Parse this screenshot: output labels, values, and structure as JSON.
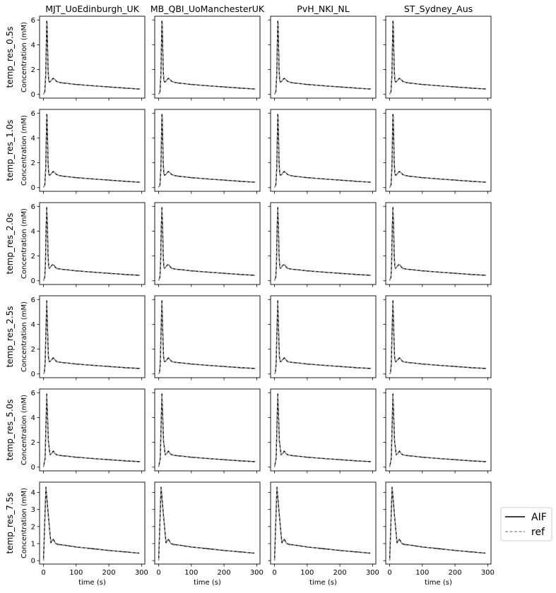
{
  "chart_data": {
    "type": "line",
    "layout": "small-multiples grid (6 rows x 4 columns)",
    "columns": [
      "MJT_UoEdinburgh_UK",
      "MB_QBI_UoManchesterUK",
      "PvH_NKI_NL",
      "ST_Sydney_Aus"
    ],
    "rows": [
      "temp_res_0.5s",
      "temp_res_1.0s",
      "temp_res_2.0s",
      "temp_res_2.5s",
      "temp_res_5.0s",
      "temp_res_7.5s"
    ],
    "xlabel": "time (s)",
    "ylabel": "Concentration (mM)",
    "xlim": [
      -12,
      310
    ],
    "x_ticks": [
      0,
      100,
      200,
      300
    ],
    "row_ylim": [
      [
        -0.3,
        6.3
      ],
      [
        -0.3,
        6.3
      ],
      [
        -0.3,
        6.3
      ],
      [
        -0.3,
        6.3
      ],
      [
        -0.3,
        6.3
      ],
      [
        -0.2,
        4.6
      ]
    ],
    "row_yticks": [
      [
        0,
        2,
        4,
        6
      ],
      [
        0,
        2,
        4,
        6
      ],
      [
        0,
        2,
        4,
        6
      ],
      [
        0,
        2,
        4,
        6
      ],
      [
        0,
        2,
        4,
        6
      ],
      [
        0,
        1,
        2,
        3,
        4
      ]
    ],
    "legend_placement": "right of bottom row",
    "series": [
      {
        "name": "AIF",
        "color": "#000000",
        "style": "solid"
      },
      {
        "name": "ref",
        "color": "#999999",
        "style": "dashed"
      }
    ],
    "row_curves": [
      {
        "x": [
          0,
          4,
          7,
          9,
          10,
          11,
          12,
          14,
          16,
          18,
          22,
          26,
          30,
          34,
          40,
          50,
          60,
          80,
          100,
          150,
          200,
          250,
          295
        ],
        "y": [
          0.02,
          0.2,
          1.6,
          4.6,
          5.9,
          5.7,
          4.4,
          2.0,
          1.1,
          1.0,
          1.05,
          1.2,
          1.3,
          1.22,
          1.05,
          0.96,
          0.92,
          0.86,
          0.8,
          0.7,
          0.6,
          0.51,
          0.43
        ]
      },
      {
        "x": [
          0,
          4,
          7,
          9,
          10,
          11,
          12,
          14,
          16,
          18,
          22,
          26,
          30,
          34,
          40,
          50,
          60,
          80,
          100,
          150,
          200,
          250,
          295
        ],
        "y": [
          0.02,
          0.2,
          1.6,
          4.6,
          5.9,
          5.7,
          4.4,
          2.0,
          1.1,
          1.0,
          1.05,
          1.2,
          1.3,
          1.22,
          1.05,
          0.96,
          0.92,
          0.86,
          0.8,
          0.7,
          0.6,
          0.51,
          0.43
        ]
      },
      {
        "x": [
          0,
          4,
          6,
          8,
          10,
          12,
          14,
          16,
          18,
          20,
          24,
          28,
          32,
          36,
          40,
          50,
          60,
          80,
          100,
          150,
          200,
          250,
          294
        ],
        "y": [
          0.02,
          0.3,
          1.4,
          4.2,
          5.9,
          4.4,
          2.0,
          1.1,
          1.0,
          1.05,
          1.2,
          1.3,
          1.25,
          1.1,
          1.0,
          0.95,
          0.91,
          0.86,
          0.8,
          0.7,
          0.6,
          0.51,
          0.44
        ]
      },
      {
        "x": [
          0,
          2.5,
          5,
          7.5,
          10,
          12.5,
          15,
          17.5,
          20,
          25,
          30,
          35,
          40,
          50,
          60,
          80,
          100,
          150,
          200,
          250,
          295
        ],
        "y": [
          0.02,
          0.1,
          0.8,
          3.5,
          5.9,
          3.5,
          1.4,
          1.0,
          1.0,
          1.15,
          1.3,
          1.15,
          1.0,
          0.95,
          0.91,
          0.86,
          0.8,
          0.7,
          0.6,
          0.51,
          0.44
        ]
      },
      {
        "x": [
          0,
          5,
          10,
          15,
          20,
          25,
          30,
          35,
          40,
          50,
          60,
          80,
          100,
          150,
          200,
          250,
          295
        ],
        "y": [
          0.02,
          0.7,
          5.9,
          2.1,
          1.0,
          1.1,
          1.3,
          1.1,
          1.0,
          0.95,
          0.91,
          0.86,
          0.8,
          0.7,
          0.6,
          0.51,
          0.44
        ]
      },
      {
        "x": [
          0,
          7.5,
          15,
          22.5,
          30,
          37.5,
          45,
          60,
          80,
          100,
          150,
          200,
          250,
          293
        ],
        "y": [
          0.02,
          4.3,
          2.6,
          1.05,
          1.25,
          1.0,
          0.95,
          0.92,
          0.86,
          0.8,
          0.7,
          0.6,
          0.51,
          0.44
        ]
      }
    ]
  },
  "legend": {
    "aif_label": "AIF",
    "ref_label": "ref"
  }
}
